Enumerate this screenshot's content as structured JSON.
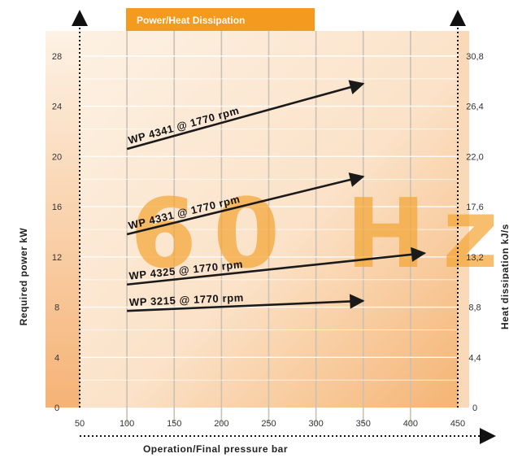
{
  "chart_data": {
    "type": "line",
    "title": "Power/Heat Dissipation",
    "watermark": "60 Hz",
    "xlabel": "Operation/Final pressure bar",
    "ylabel": "Required power kW",
    "ylabel_right": "Heat dissipation kJ/s",
    "x_ticks": [
      "50",
      "100",
      "150",
      "200",
      "250",
      "300",
      "350",
      "400",
      "450"
    ],
    "y_ticks": [
      "0",
      "4",
      "8",
      "12",
      "16",
      "20",
      "24",
      "28"
    ],
    "y_ticks_right": [
      "0",
      "4,4",
      "8,8",
      "13,2",
      "17,6",
      "22,0",
      "26,4",
      "30,8"
    ],
    "xlim": [
      50,
      450
    ],
    "ylim": [
      0,
      30
    ],
    "grid": true,
    "colors": {
      "background_dark": "#f6b877",
      "background_light": "#fdeede",
      "header": "#f39a1f",
      "watermark": "#f4a636",
      "arrow": "#1a1a1a"
    },
    "series": [
      {
        "name": "WP 4341 @ 1770 rpm",
        "x": [
          100,
          350
        ],
        "y": [
          20.6,
          25.8
        ]
      },
      {
        "name": "WP 4331 @ 1770 rpm",
        "x": [
          100,
          350
        ],
        "y": [
          13.8,
          18.4
        ]
      },
      {
        "name": "WP 4325 @ 1770 rpm",
        "x": [
          100,
          415
        ],
        "y": [
          9.8,
          12.3
        ]
      },
      {
        "name": "WP 3215 @ 1770 rpm",
        "x": [
          100,
          350
        ],
        "y": [
          7.7,
          8.5
        ]
      }
    ]
  }
}
